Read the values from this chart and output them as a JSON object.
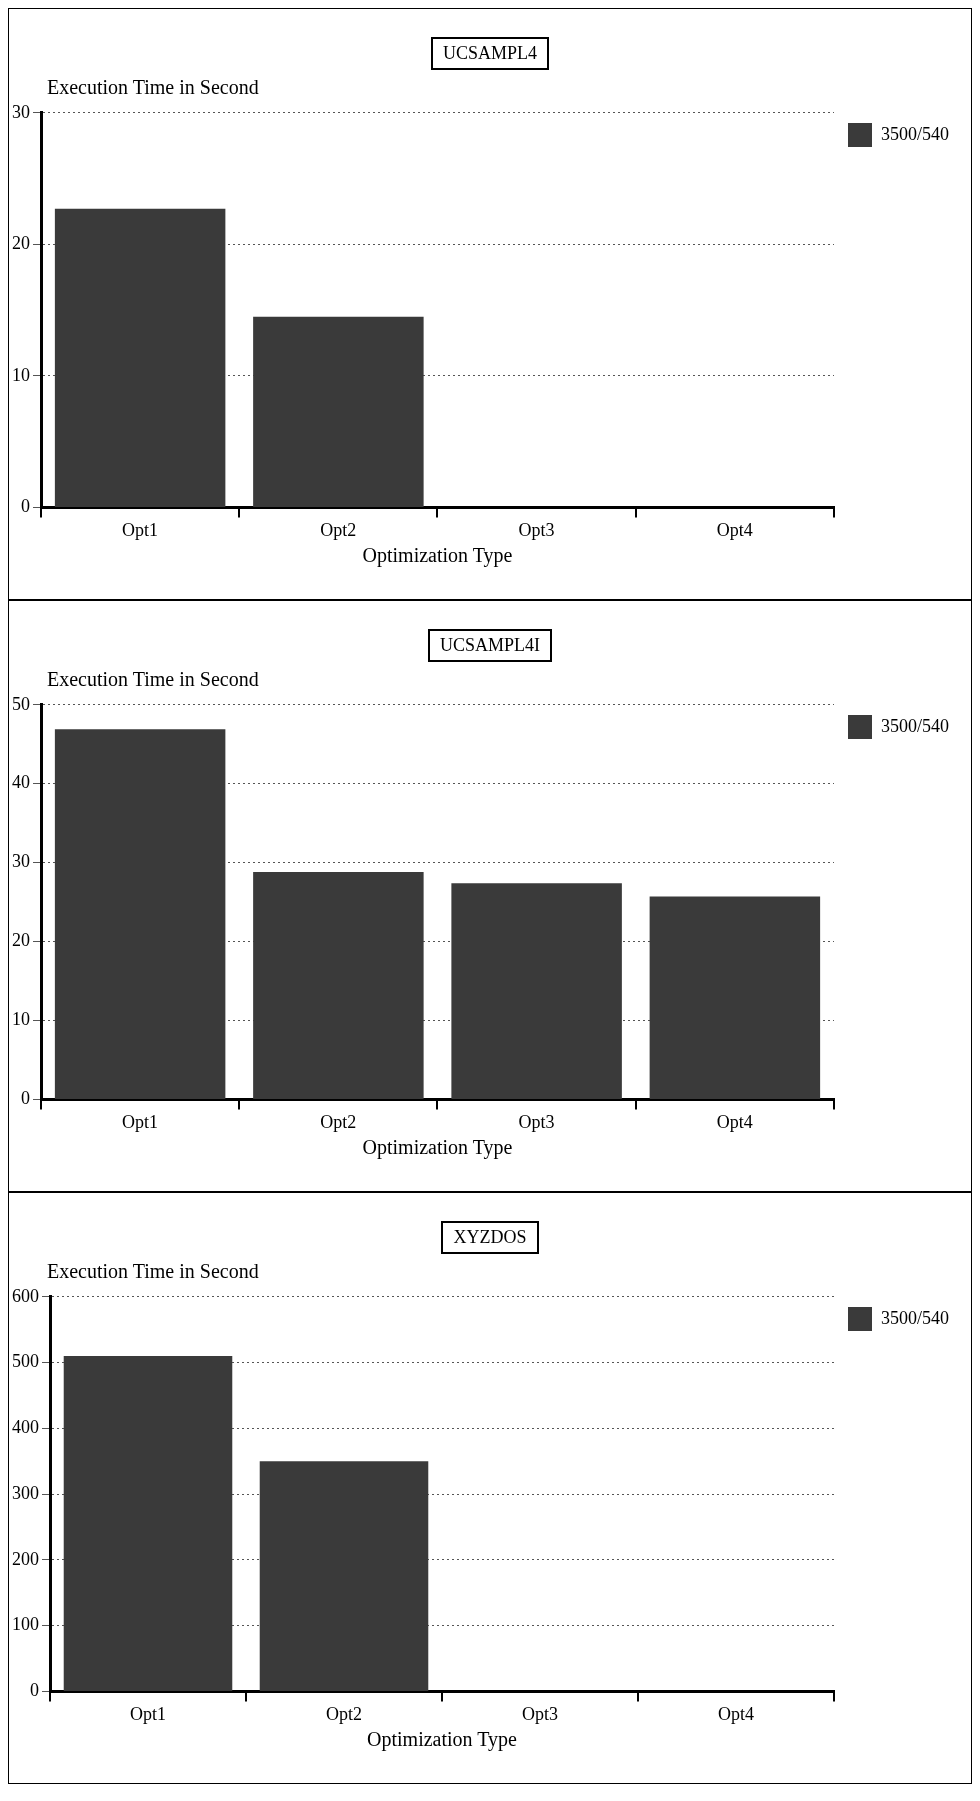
{
  "chart_data": [
    {
      "type": "bar",
      "title": "UCSAMPL4",
      "ylabel": "Execution Time in Second",
      "xlabel": "Optimization Type",
      "categories": [
        "Opt1",
        "Opt2",
        "Opt3",
        "Opt4"
      ],
      "series": [
        {
          "name": "3500/540",
          "color": "#3a3a3a",
          "values": [
            22.7,
            14.5,
            0,
            0
          ]
        }
      ],
      "ylim": [
        0,
        30
      ],
      "yticks": [
        0,
        10,
        20,
        30
      ],
      "grid": "y",
      "legend": "top right"
    },
    {
      "type": "bar",
      "title": "UCSAMPL4I",
      "ylabel": "Execution Time in Second",
      "xlabel": "Optimization Type",
      "categories": [
        "Opt1",
        "Opt2",
        "Opt3",
        "Opt4"
      ],
      "series": [
        {
          "name": "3500/540",
          "color": "#3a3a3a",
          "values": [
            46.9,
            28.8,
            27.4,
            25.7
          ]
        }
      ],
      "ylim": [
        0,
        50
      ],
      "yticks": [
        0,
        10,
        20,
        30,
        40,
        50
      ],
      "grid": "y",
      "legend": "top right"
    },
    {
      "type": "bar",
      "title": "XYZDOS",
      "ylabel": "Execution Time in Second",
      "xlabel": "Optimization Type",
      "categories": [
        "Opt1",
        "Opt2",
        "Opt3",
        "Opt4"
      ],
      "series": [
        {
          "name": "3500/540",
          "color": "#3a3a3a",
          "values": [
            510,
            350,
            0,
            0
          ]
        }
      ],
      "ylim": [
        0,
        600
      ],
      "yticks": [
        0,
        100,
        200,
        300,
        400,
        500,
        600
      ],
      "grid": "y",
      "legend": "top right"
    }
  ]
}
